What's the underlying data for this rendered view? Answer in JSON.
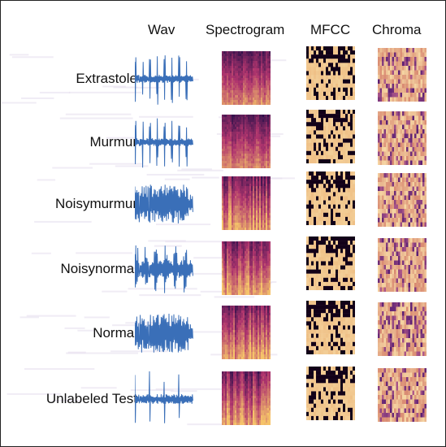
{
  "columns": [
    {
      "key": "wav",
      "label": "Wav"
    },
    {
      "key": "spectrogram",
      "label": "Spectrogram"
    },
    {
      "key": "mfcc",
      "label": "MFCC"
    },
    {
      "key": "chroma",
      "label": "Chroma"
    }
  ],
  "rows": [
    {
      "label": "Extrastole",
      "wav_style": "beats"
    },
    {
      "label": "Murmur",
      "wav_style": "beats"
    },
    {
      "label": "Noisymurmur",
      "wav_style": "dense"
    },
    {
      "label": "Noisynormal",
      "wav_style": "bursts"
    },
    {
      "label": "Normal",
      "wav_style": "dense"
    },
    {
      "label": "Unlabeled Test",
      "wav_style": "sparse"
    }
  ],
  "colors": {
    "wav": "#3a6fb8",
    "spectro_dark": "#2a0f4a",
    "spectro_mid": "#b0356e",
    "spectro_bright": "#f5c36a",
    "mfcc_dark": "#120018",
    "mfcc_light": "#f3cf98",
    "chroma_dark": "#5a1e73",
    "chroma_light": "#f6d7a4"
  }
}
